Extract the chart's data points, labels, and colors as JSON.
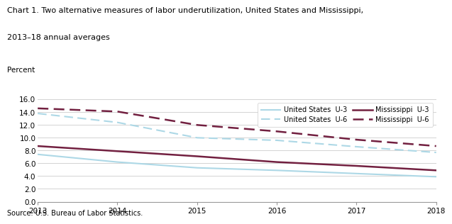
{
  "title_line1": "Chart 1. Two alternative measures of labor underutilization, United States and Mississippi,",
  "title_line2": "2013–18 annual averages",
  "ylabel": "Percent",
  "source": "Source: U.S. Bureau of Labor Statistics.",
  "years": [
    2013,
    2014,
    2015,
    2016,
    2017,
    2018
  ],
  "us_u3": [
    7.4,
    6.2,
    5.3,
    4.9,
    4.4,
    3.9
  ],
  "us_u6": [
    13.8,
    12.4,
    10.0,
    9.6,
    8.6,
    7.7
  ],
  "ms_u3": [
    8.7,
    7.9,
    7.1,
    6.2,
    5.6,
    4.9
  ],
  "ms_u6": [
    14.6,
    14.1,
    12.0,
    11.0,
    9.7,
    8.7
  ],
  "color_us": "#add8e6",
  "color_ms": "#722040",
  "ylim": [
    0.0,
    16.0
  ],
  "yticks": [
    0.0,
    2.0,
    4.0,
    6.0,
    8.0,
    10.0,
    12.0,
    14.0,
    16.0
  ],
  "xticks": [
    2013,
    2014,
    2015,
    2016,
    2017,
    2018
  ],
  "legend_entries": [
    "United States  U-3",
    "United States  U-6",
    "Mississippi  U-3",
    "Mississippi  U-6"
  ]
}
